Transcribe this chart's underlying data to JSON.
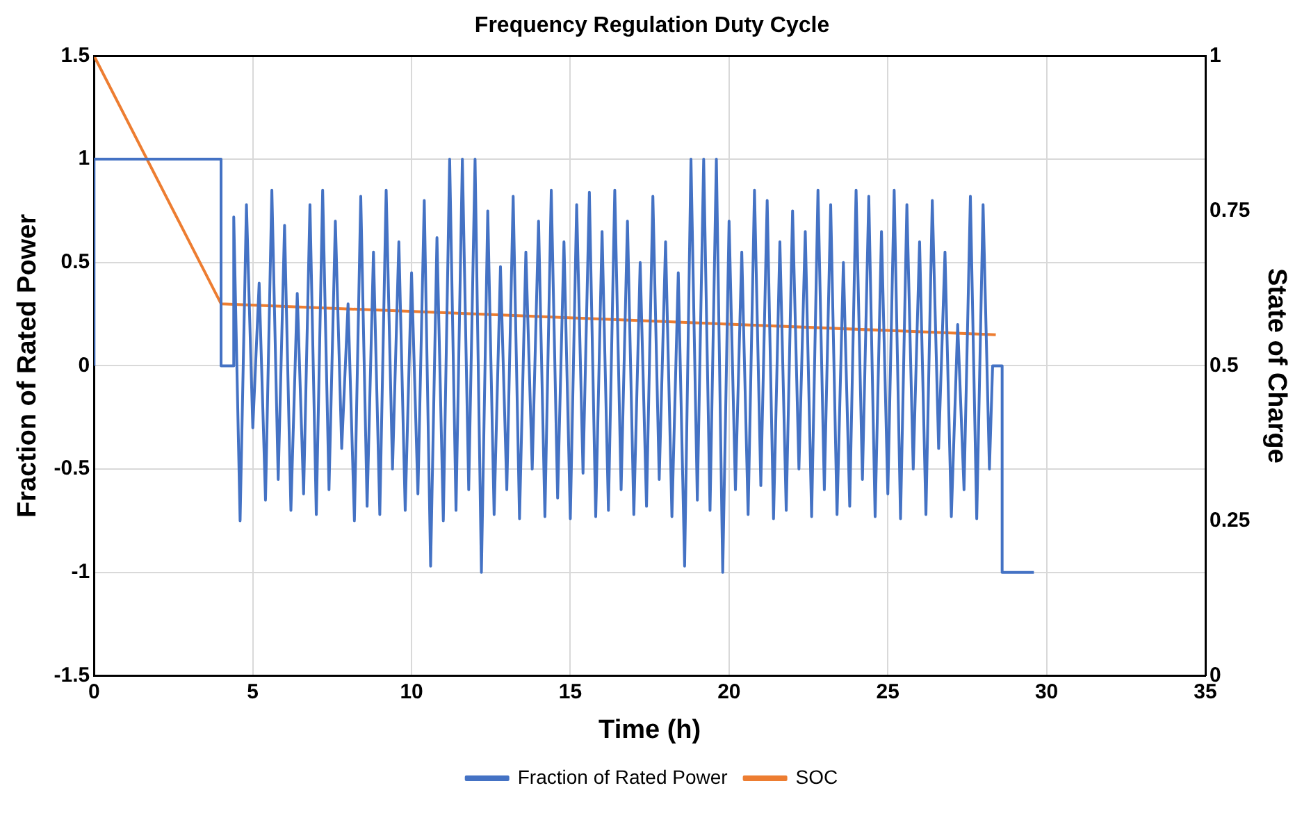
{
  "chart_data": {
    "type": "line",
    "title": "Frequency Regulation Duty Cycle",
    "xlabel": "Time (h)",
    "ylabel": "Fraction of Rated Power",
    "y2label": "State of Charge",
    "xlim": [
      0,
      35
    ],
    "xticks": [
      0,
      5,
      10,
      15,
      20,
      25,
      30,
      35
    ],
    "ylim": [
      -1.5,
      1.5
    ],
    "yticks": [
      -1.5,
      -1,
      -0.5,
      0,
      0.5,
      1,
      1.5
    ],
    "y2lim": [
      0,
      1
    ],
    "y2ticks": [
      0,
      0.25,
      0.5,
      0.75,
      1
    ],
    "grid": true,
    "legend": "bottom",
    "marker": "none",
    "line_style": "solid",
    "series": [
      {
        "name": "Fraction of Rated Power",
        "color": "#4472c4",
        "x": [
          0,
          0,
          4,
          4,
          4.4,
          4.4,
          4.6,
          4.8,
          5.0,
          5.2,
          5.4,
          5.6,
          5.8,
          6.0,
          6.2,
          6.4,
          6.6,
          6.8,
          7.0,
          7.2,
          7.4,
          7.6,
          7.8,
          8.0,
          8.2,
          8.4,
          8.6,
          8.8,
          9.0,
          9.2,
          9.4,
          9.6,
          9.8,
          10.0,
          10.2,
          10.4,
          10.6,
          10.8,
          11.0,
          11.2,
          11.4,
          11.6,
          11.8,
          12.0,
          12.2,
          12.4,
          12.6,
          12.8,
          13.0,
          13.2,
          13.4,
          13.6,
          13.8,
          14.0,
          14.2,
          14.4,
          14.6,
          14.8,
          15.0,
          15.2,
          15.4,
          15.6,
          15.8,
          16.0,
          16.2,
          16.4,
          16.6,
          16.8,
          17.0,
          17.2,
          17.4,
          17.6,
          17.8,
          18.0,
          18.2,
          18.4,
          18.6,
          18.8,
          19.0,
          19.2,
          19.4,
          19.6,
          19.8,
          20.0,
          20.2,
          20.4,
          20.6,
          20.8,
          21.0,
          21.2,
          21.4,
          21.6,
          21.8,
          22.0,
          22.2,
          22.4,
          22.6,
          22.8,
          23.0,
          23.2,
          23.4,
          23.6,
          23.8,
          24.0,
          24.2,
          24.4,
          24.6,
          24.8,
          25.0,
          25.2,
          25.4,
          25.6,
          25.8,
          26.0,
          26.2,
          26.4,
          26.6,
          26.8,
          27.0,
          27.2,
          27.4,
          27.6,
          27.8,
          28.0,
          28.2,
          28.3,
          28.6,
          28.6,
          29.6
        ],
        "values": [
          0,
          1,
          1,
          0,
          0,
          0.72,
          -0.75,
          0.78,
          -0.3,
          0.4,
          -0.65,
          0.85,
          -0.55,
          0.68,
          -0.7,
          0.35,
          -0.62,
          0.78,
          -0.72,
          0.85,
          -0.6,
          0.7,
          -0.4,
          0.3,
          -0.75,
          0.82,
          -0.68,
          0.55,
          -0.72,
          0.85,
          -0.5,
          0.6,
          -0.7,
          0.45,
          -0.62,
          0.8,
          -0.97,
          0.62,
          -0.75,
          1,
          -0.7,
          1,
          -0.6,
          1,
          -1,
          0.75,
          -0.72,
          0.48,
          -0.6,
          0.82,
          -0.74,
          0.55,
          -0.5,
          0.7,
          -0.73,
          0.85,
          -0.64,
          0.6,
          -0.74,
          0.78,
          -0.52,
          0.84,
          -0.73,
          0.65,
          -0.7,
          0.85,
          -0.6,
          0.7,
          -0.72,
          0.5,
          -0.68,
          0.82,
          -0.55,
          0.6,
          -0.73,
          0.45,
          -0.97,
          1,
          -0.65,
          1,
          -0.7,
          1,
          -1,
          0.7,
          -0.6,
          0.55,
          -0.72,
          0.85,
          -0.58,
          0.8,
          -0.74,
          0.6,
          -0.7,
          0.75,
          -0.5,
          0.65,
          -0.73,
          0.85,
          -0.6,
          0.78,
          -0.72,
          0.5,
          -0.68,
          0.85,
          -0.55,
          0.82,
          -0.73,
          0.65,
          -0.62,
          0.85,
          -0.74,
          0.78,
          -0.5,
          0.6,
          -0.72,
          0.8,
          -0.4,
          0.55,
          -0.73,
          0.2,
          -0.6,
          0.82,
          -0.74,
          0.78,
          -0.5,
          0,
          0,
          -1,
          -1
        ]
      },
      {
        "name": "SOC",
        "color": "#ed7d31",
        "axis": "y2",
        "x": [
          0,
          4,
          28.4
        ],
        "values": [
          1,
          0.6,
          0.55
        ]
      }
    ]
  }
}
